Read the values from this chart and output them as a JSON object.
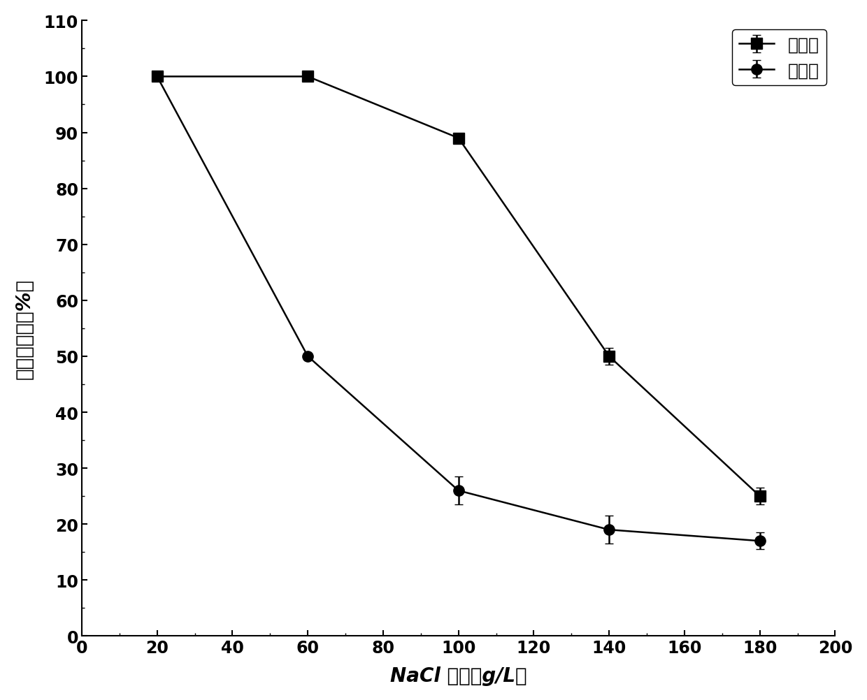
{
  "treatment_x": [
    20,
    60,
    100,
    140,
    180
  ],
  "treatment_y": [
    100,
    100,
    89,
    50,
    25
  ],
  "treatment_yerr": [
    0,
    0,
    0,
    1.5,
    1.5
  ],
  "control_x": [
    20,
    60,
    100,
    140,
    180
  ],
  "control_y": [
    100,
    50,
    26,
    19,
    17
  ],
  "control_yerr": [
    0,
    0,
    2.5,
    2.5,
    1.5
  ],
  "xlabel": "NaCl 浓度（g/L）",
  "ylabel": "苯酚去除率（%）",
  "xlim": [
    0,
    200
  ],
  "ylim": [
    0,
    110
  ],
  "xticks": [
    0,
    20,
    40,
    60,
    80,
    100,
    120,
    140,
    160,
    180,
    200
  ],
  "yticks": [
    0,
    10,
    20,
    30,
    40,
    50,
    60,
    70,
    80,
    90,
    100,
    110
  ],
  "legend_treatment": "处理组",
  "legend_control": "对照组",
  "line_color": "#000000",
  "marker_square": "s",
  "marker_circle": "o",
  "markersize": 11,
  "linewidth": 1.8,
  "capsize": 4
}
